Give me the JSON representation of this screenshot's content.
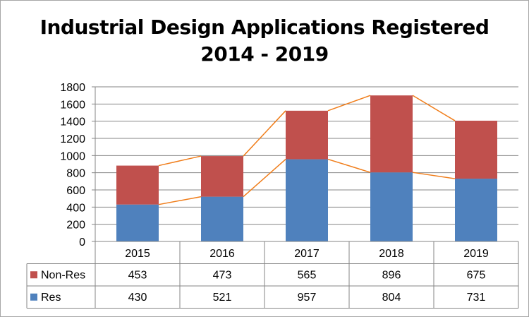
{
  "chart_data": {
    "type": "bar",
    "stacked": true,
    "title": "Industrial Design Applications Registered",
    "subtitle": "2014 - 2019",
    "categories": [
      "2015",
      "2016",
      "2017",
      "2018",
      "2019"
    ],
    "series": [
      {
        "name": "Res",
        "values": [
          430,
          521,
          957,
          804,
          731
        ],
        "color": "#4f81bd"
      },
      {
        "name": "Non-Res",
        "values": [
          453,
          473,
          565,
          896,
          675
        ],
        "color": "#c0504d"
      }
    ],
    "series_lines_color": "#f07d1a",
    "ylim": [
      0,
      1800
    ],
    "yticks": [
      "0",
      "200",
      "400",
      "600",
      "800",
      "1000",
      "1200",
      "1400",
      "1600",
      "1800"
    ],
    "grid": true,
    "legend": "data-table",
    "data_table_row_order": [
      "Non-Res",
      "Res"
    ]
  }
}
